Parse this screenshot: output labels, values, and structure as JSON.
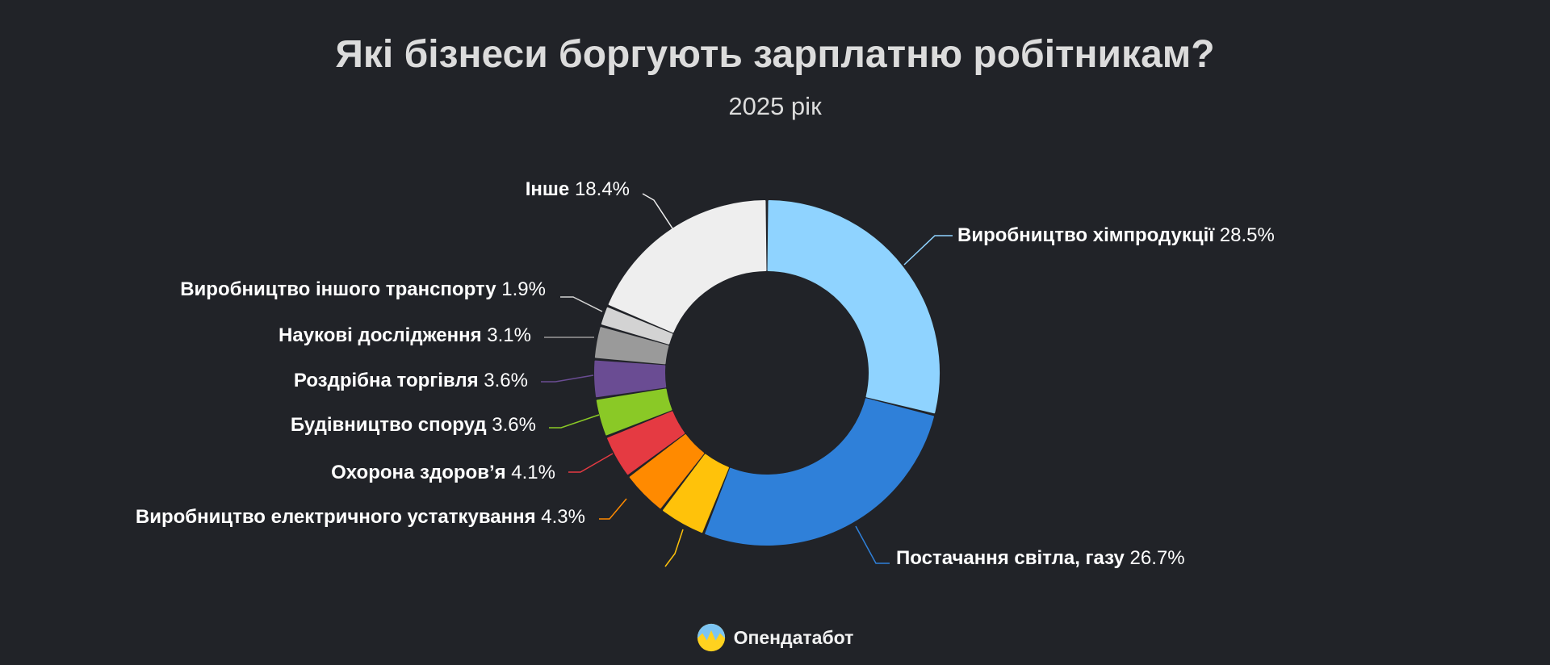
{
  "title": "Які бізнеси боргують зарплатню робітникам?",
  "subtitle": "2025 рік",
  "brand": {
    "name": "Опендатабот",
    "logo_icon": "opendatabot-logo-icon"
  },
  "chart_data": {
    "type": "pie",
    "donut": true,
    "legend": "none",
    "slices": [
      {
        "label": "Виробництво хімпродукції",
        "value": 28.5,
        "pct_text": "28.5%",
        "color": "#8fd3ff"
      },
      {
        "label": "Постачання світла, газу",
        "value": 26.7,
        "pct_text": "26.7%",
        "color": "#2f80d9"
      },
      {
        "label": "",
        "value": 4.4,
        "pct_text": "",
        "color": "#ffc20a"
      },
      {
        "label": "Виробництво електричного устаткування",
        "value": 4.3,
        "pct_text": "4.3%",
        "color": "#ff8a00"
      },
      {
        "label": "Охорона здоров’я",
        "value": 4.1,
        "pct_text": "4.1%",
        "color": "#e53a42"
      },
      {
        "label": "Будівництво споруд",
        "value": 3.6,
        "pct_text": "3.6%",
        "color": "#8ac926"
      },
      {
        "label": "Роздрібна торгівля",
        "value": 3.6,
        "pct_text": "3.6%",
        "color": "#6a4c93"
      },
      {
        "label": "Наукові дослідження",
        "value": 3.1,
        "pct_text": "3.1%",
        "color": "#9a9a9a"
      },
      {
        "label": "Виробництво іншого транспорту",
        "value": 1.9,
        "pct_text": "1.9%",
        "color": "#d3d3d3"
      },
      {
        "label": "Інше",
        "value": 18.4,
        "pct_text": "18.4%",
        "color": "#eeeeee"
      }
    ]
  }
}
